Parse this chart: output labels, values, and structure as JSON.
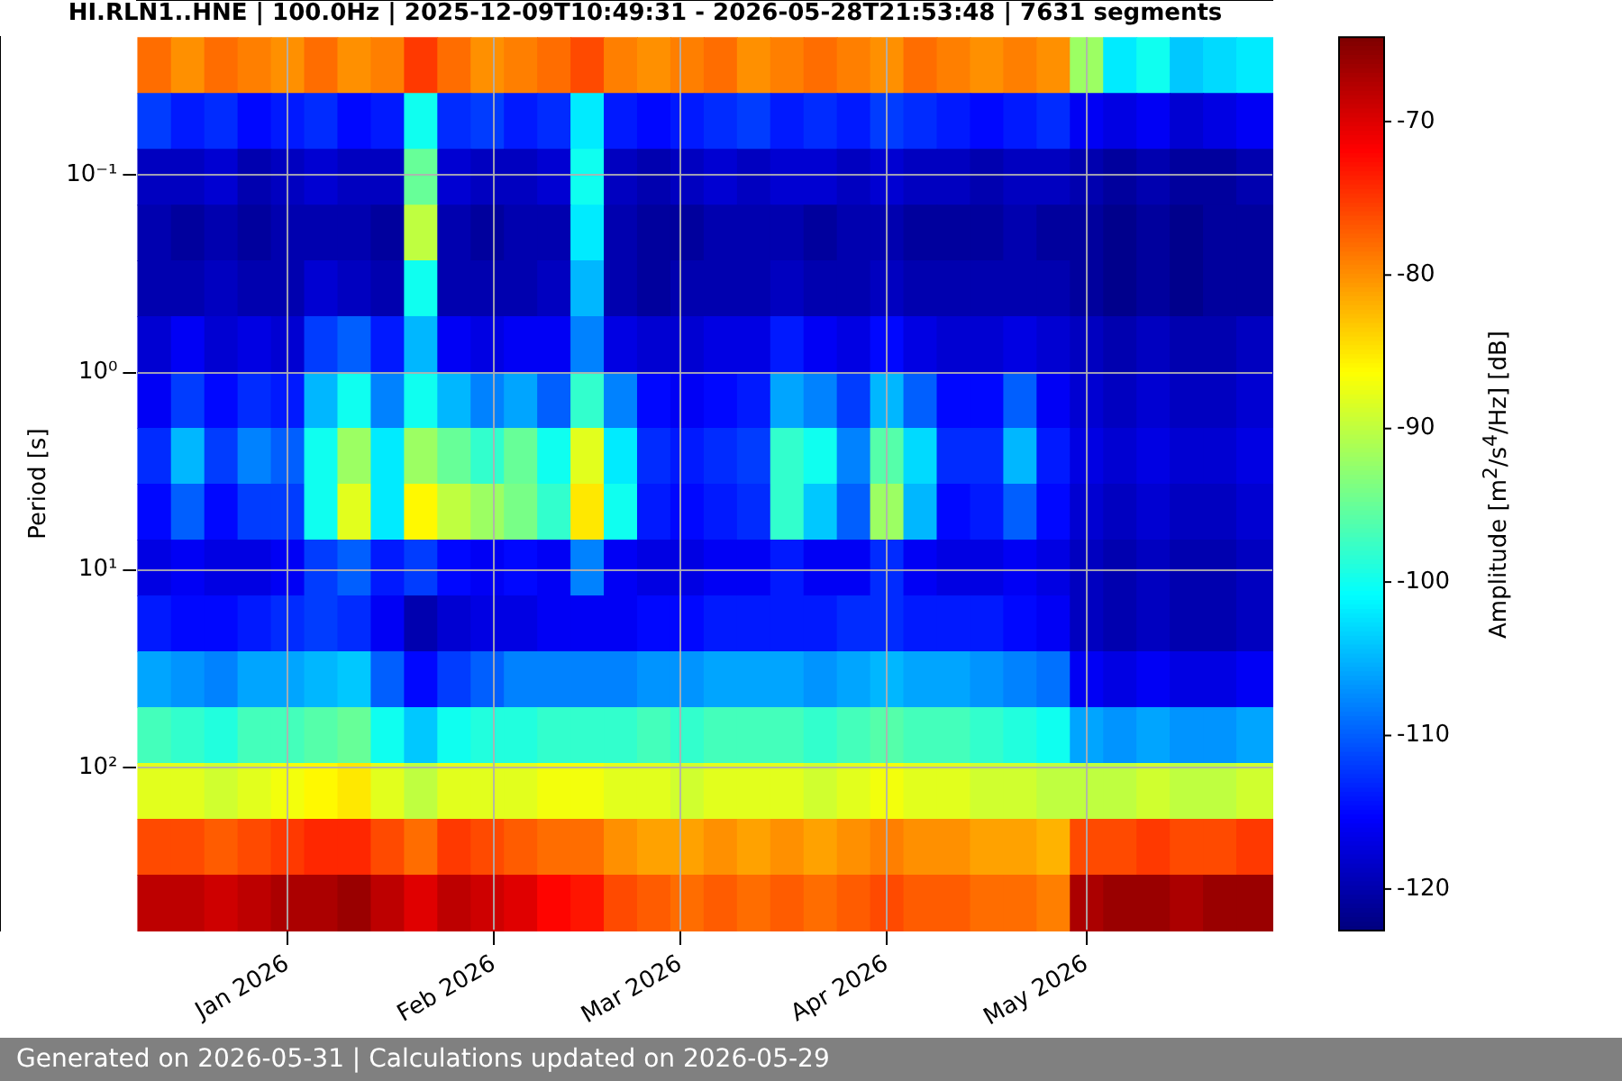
{
  "chart_data": {
    "type": "heatmap",
    "title": "HI.RLN1..HNE | 100.0Hz | 2025-12-09T10:49:31 - 2026-05-28T21:53:48 | 7631 segments",
    "ylabel": "Period [s]",
    "clabel": "Amplitude [m$^{2}$/s$^{4}$/Hz] [dB]",
    "annotations": [
      "Generated on 2026-05-31 | Calculations updated on 2026-05-29"
    ],
    "x": [
      "2025-12-12",
      "2025-12-17",
      "2025-12-22",
      "2025-12-27",
      "2026-01-01",
      "2026-01-06",
      "2026-01-11",
      "2026-01-16",
      "2026-01-21",
      "2026-01-26",
      "2026-01-31",
      "2026-02-05",
      "2026-02-10",
      "2026-02-15",
      "2026-02-20",
      "2026-02-25",
      "2026-03-02",
      "2026-03-07",
      "2026-03-12",
      "2026-03-17",
      "2026-03-22",
      "2026-03-27",
      "2026-04-01",
      "2026-04-06",
      "2026-04-11",
      "2026-04-16",
      "2026-04-21",
      "2026-04-26",
      "2026-05-01",
      "2026-05-06",
      "2026-05-11",
      "2026-05-16",
      "2026-05-21",
      "2026-05-26"
    ],
    "xlim": [
      "2025-12-09T10:49",
      "2026-05-28T21:53"
    ],
    "xticks": [
      {
        "value": "2026-01-01",
        "label": "Jan 2026"
      },
      {
        "value": "2026-02-01",
        "label": "Feb 2026"
      },
      {
        "value": "2026-03-01",
        "label": "Mar 2026"
      },
      {
        "value": "2026-04-01",
        "label": "Apr 2026"
      },
      {
        "value": "2026-05-01",
        "label": "May 2026"
      }
    ],
    "log": "y",
    "ylim": [
      670,
      0.02
    ],
    "yticks": [
      {
        "value": 0.1,
        "label": "10⁻¹"
      },
      {
        "value": 1,
        "label": "10⁰"
      },
      {
        "value": 10,
        "label": "10¹"
      },
      {
        "value": 100,
        "label": "10²"
      }
    ],
    "grid": true,
    "clim": [
      -122.7,
      -64.5
    ],
    "cticks": [
      -120,
      -110,
      -100,
      -90,
      -80,
      -70
    ],
    "cells": [
      [
        -78,
        -80,
        -78,
        -79,
        -80,
        -78,
        -80,
        -79,
        -75,
        -78,
        -80,
        -79,
        -78,
        -76,
        -79,
        -80,
        -79,
        -78,
        -80,
        -79,
        -78,
        -79,
        -80,
        -78,
        -79,
        -80,
        -79,
        -80,
        -92,
        -102,
        -100,
        -104,
        -103,
        -102
      ],
      [
        -112,
        -114,
        -113,
        -115,
        -114,
        -113,
        -115,
        -114,
        -100,
        -113,
        -112,
        -114,
        -113,
        -102,
        -114,
        -115,
        -114,
        -113,
        -112,
        -114,
        -113,
        -114,
        -112,
        -113,
        -114,
        -115,
        -114,
        -113,
        -116,
        -117,
        -116,
        -118,
        -117,
        -116
      ],
      [
        -119,
        -119,
        -118,
        -120,
        -119,
        -118,
        -119,
        -119,
        -95,
        -118,
        -119,
        -119,
        -118,
        -100,
        -119,
        -120,
        -119,
        -118,
        -119,
        -118,
        -118,
        -119,
        -118,
        -119,
        -119,
        -120,
        -119,
        -119,
        -120,
        -121,
        -120,
        -121,
        -121,
        -120
      ],
      [
        -120,
        -121,
        -120,
        -121,
        -120,
        -120,
        -120,
        -121,
        -90,
        -120,
        -121,
        -120,
        -120,
        -102,
        -120,
        -121,
        -121,
        -120,
        -120,
        -120,
        -121,
        -120,
        -120,
        -121,
        -121,
        -121,
        -120,
        -121,
        -121,
        -122,
        -121,
        -122,
        -121,
        -121
      ],
      [
        -120,
        -120,
        -119,
        -120,
        -120,
        -118,
        -119,
        -120,
        -100,
        -120,
        -120,
        -120,
        -119,
        -105,
        -120,
        -121,
        -120,
        -120,
        -120,
        -119,
        -120,
        -120,
        -119,
        -120,
        -120,
        -120,
        -120,
        -120,
        -121,
        -122,
        -121,
        -122,
        -121,
        -121
      ],
      [
        -118,
        -116,
        -118,
        -117,
        -118,
        -112,
        -110,
        -114,
        -105,
        -116,
        -117,
        -116,
        -116,
        -108,
        -117,
        -118,
        -118,
        -117,
        -117,
        -114,
        -116,
        -117,
        -115,
        -117,
        -118,
        -118,
        -117,
        -118,
        -119,
        -120,
        -119,
        -120,
        -120,
        -119
      ],
      [
        -116,
        -112,
        -115,
        -113,
        -114,
        -105,
        -100,
        -108,
        -100,
        -105,
        -108,
        -106,
        -110,
        -98,
        -108,
        -115,
        -116,
        -115,
        -114,
        -106,
        -108,
        -112,
        -105,
        -110,
        -115,
        -115,
        -110,
        -116,
        -118,
        -119,
        -118,
        -119,
        -119,
        -118
      ],
      [
        -113,
        -105,
        -112,
        -108,
        -110,
        -100,
        -92,
        -102,
        -92,
        -95,
        -98,
        -95,
        -100,
        -88,
        -102,
        -113,
        -114,
        -113,
        -112,
        -98,
        -100,
        -108,
        -96,
        -103,
        -113,
        -113,
        -105,
        -114,
        -117,
        -118,
        -117,
        -118,
        -118,
        -117
      ],
      [
        -115,
        -110,
        -115,
        -112,
        -112,
        -100,
        -88,
        -102,
        -86,
        -90,
        -92,
        -94,
        -98,
        -85,
        -100,
        -114,
        -115,
        -114,
        -113,
        -98,
        -104,
        -110,
        -92,
        -105,
        -115,
        -114,
        -110,
        -115,
        -118,
        -119,
        -118,
        -119,
        -119,
        -118
      ],
      [
        -117,
        -116,
        -117,
        -117,
        -116,
        -112,
        -110,
        -114,
        -112,
        -115,
        -116,
        -115,
        -116,
        -108,
        -116,
        -117,
        -117,
        -116,
        -116,
        -114,
        -116,
        -116,
        -113,
        -116,
        -117,
        -117,
        -116,
        -117,
        -119,
        -120,
        -119,
        -120,
        -120,
        -119
      ],
      [
        -114,
        -115,
        -115,
        -114,
        -113,
        -112,
        -113,
        -116,
        -120,
        -118,
        -117,
        -117,
        -116,
        -116,
        -116,
        -115,
        -115,
        -114,
        -114,
        -114,
        -114,
        -113,
        -113,
        -114,
        -114,
        -114,
        -115,
        -116,
        -119,
        -120,
        -119,
        -120,
        -120,
        -119
      ],
      [
        -106,
        -107,
        -108,
        -106,
        -106,
        -105,
        -104,
        -110,
        -115,
        -112,
        -110,
        -108,
        -108,
        -108,
        -108,
        -107,
        -107,
        -106,
        -106,
        -106,
        -107,
        -106,
        -105,
        -106,
        -106,
        -107,
        -108,
        -109,
        -116,
        -117,
        -116,
        -117,
        -117,
        -116
      ],
      [
        -97,
        -98,
        -99,
        -97,
        -97,
        -96,
        -95,
        -100,
        -104,
        -100,
        -99,
        -99,
        -98,
        -98,
        -98,
        -97,
        -98,
        -97,
        -97,
        -97,
        -98,
        -97,
        -96,
        -97,
        -97,
        -98,
        -99,
        -100,
        -106,
        -107,
        -106,
        -107,
        -107,
        -106
      ],
      [
        -88,
        -88,
        -89,
        -88,
        -87,
        -86,
        -85,
        -88,
        -90,
        -88,
        -88,
        -88,
        -87,
        -87,
        -88,
        -88,
        -89,
        -88,
        -88,
        -88,
        -89,
        -88,
        -87,
        -88,
        -88,
        -89,
        -89,
        -90,
        -90,
        -90,
        -89,
        -90,
        -90,
        -89
      ],
      [
        -76,
        -76,
        -77,
        -76,
        -75,
        -74,
        -74,
        -76,
        -78,
        -75,
        -76,
        -77,
        -78,
        -78,
        -80,
        -81,
        -81,
        -80,
        -81,
        -80,
        -81,
        -80,
        -79,
        -80,
        -80,
        -81,
        -81,
        -82,
        -76,
        -76,
        -75,
        -76,
        -76,
        -75
      ],
      [
        -68,
        -68,
        -69,
        -68,
        -67,
        -67,
        -66,
        -68,
        -70,
        -68,
        -69,
        -70,
        -72,
        -73,
        -76,
        -77,
        -78,
        -77,
        -78,
        -77,
        -78,
        -77,
        -76,
        -77,
        -77,
        -78,
        -78,
        -79,
        -67,
        -66,
        -66,
        -67,
        -66,
        -66
      ]
    ]
  }
}
